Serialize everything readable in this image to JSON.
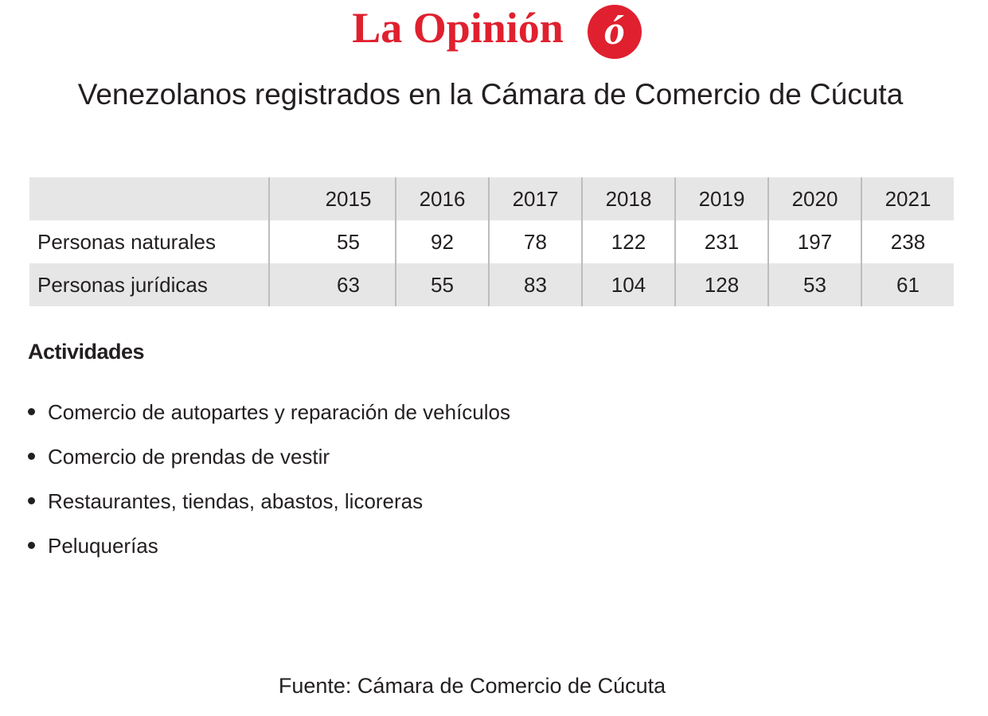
{
  "header": {
    "logo": "La Opinión",
    "logo_mark": "ó",
    "title": "Venezolanos registrados en la Cámara de Comercio de Cúcuta"
  },
  "table": {
    "columns": [
      "2015",
      "2016",
      "2017",
      "2018",
      "2019",
      "2020",
      "2021"
    ],
    "rows": [
      {
        "label": "Personas naturales",
        "values": [
          55,
          92,
          78,
          122,
          231,
          197,
          238
        ]
      },
      {
        "label": "Personas jurídicas",
        "values": [
          63,
          55,
          83,
          104,
          128,
          53,
          61
        ]
      }
    ]
  },
  "activities": {
    "heading": "Actividades",
    "items": [
      "Comercio de autopartes y reparación de vehículos",
      "Comercio de prendas de vestir",
      "Restaurantes, tiendas, abastos, licoreras",
      "Peluquerías"
    ]
  },
  "source": "Fuente: Cámara de Comercio de Cúcuta"
}
